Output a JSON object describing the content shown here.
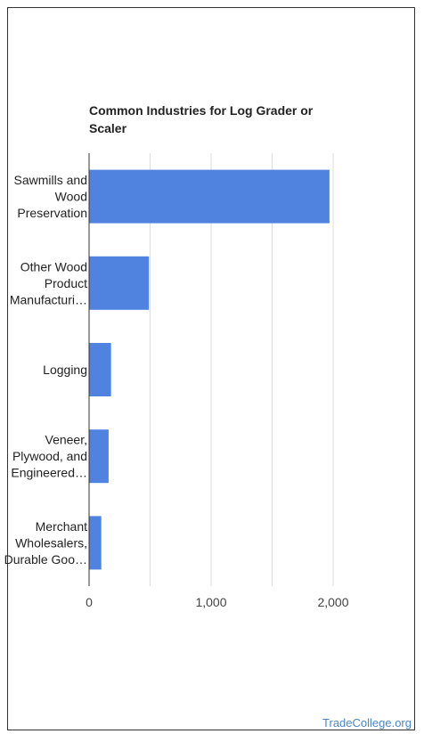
{
  "chart_data": {
    "type": "bar",
    "orientation": "horizontal",
    "title": "Common Industries for Log Grader or Scaler",
    "categories": [
      [
        "Sawmills and",
        "Wood",
        "Preservation"
      ],
      [
        "Other Wood",
        "Product",
        "Manufacturi…"
      ],
      [
        "Logging"
      ],
      [
        "Veneer,",
        "Plywood, and",
        "Engineered…"
      ],
      [
        "Merchant",
        "Wholesalers,",
        "Durable Goo…"
      ]
    ],
    "values": [
      1970,
      490,
      180,
      160,
      100
    ],
    "xlim": [
      0,
      2000
    ],
    "xticks": [
      0,
      1000,
      2000
    ],
    "xtick_labels": [
      "0",
      "1,000",
      "2,000"
    ],
    "grid": true,
    "bar_color": "#5083e0"
  },
  "footer": {
    "source": "TradeCollege.org"
  }
}
